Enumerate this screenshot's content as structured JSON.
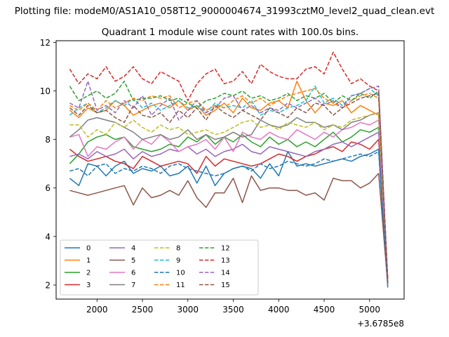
{
  "figure": {
    "suptitle": "Plotting file: modeM0/AS1A10_058T12_9000004674_31993cztM0_level2_quad_clean.evt"
  },
  "chart_data": {
    "type": "line",
    "title": "Quadrant 1 module wise count rates with 100.0s bins.",
    "xlabel": "",
    "ylabel": "",
    "x_offset_label": "+3.6785e8",
    "xlim": [
      1550,
      5380
    ],
    "ylim": [
      1.42,
      12.07
    ],
    "xticks": [
      2000,
      2500,
      3000,
      3500,
      4000,
      4500,
      5000
    ],
    "yticks": [
      2,
      4,
      6,
      8,
      10,
      12
    ],
    "grid": false,
    "legend": {
      "position": "lower-left",
      "ncol": 4
    },
    "x": [
      1700,
      1800,
      1900,
      2000,
      2100,
      2200,
      2300,
      2400,
      2500,
      2600,
      2700,
      2800,
      2900,
      3000,
      3100,
      3200,
      3300,
      3400,
      3500,
      3600,
      3700,
      3800,
      3900,
      4000,
      4100,
      4200,
      4300,
      4400,
      4500,
      4600,
      4700,
      4800,
      4900,
      5000,
      5100,
      5200
    ],
    "series": [
      {
        "name": "0",
        "color": "#1f77b4",
        "dash": "solid",
        "values": [
          6.4,
          6.1,
          7.0,
          6.9,
          6.5,
          6.9,
          7.1,
          6.6,
          6.8,
          6.7,
          6.9,
          6.5,
          6.6,
          6.9,
          6.2,
          6.9,
          6.1,
          6.6,
          6.8,
          6.9,
          6.8,
          6.4,
          7.0,
          6.5,
          7.5,
          6.9,
          7.0,
          6.9,
          7.0,
          7.1,
          7.2,
          7.1,
          7.3,
          7.4,
          7.6,
          1.9
        ]
      },
      {
        "name": "1",
        "color": "#ff7f0e",
        "dash": "solid",
        "values": [
          9.2,
          8.9,
          9.3,
          9.1,
          9.2,
          9.6,
          9.4,
          9.0,
          9.2,
          9.4,
          9.5,
          9.3,
          9.6,
          9.2,
          9.4,
          9.0,
          9.2,
          9.5,
          9.1,
          9.7,
          9.3,
          9.2,
          9.5,
          9.6,
          9.3,
          10.4,
          9.6,
          9.1,
          9.5,
          9.4,
          9.6,
          9.1,
          9.4,
          9.2,
          9.0,
          2.2
        ]
      },
      {
        "name": "2",
        "color": "#2ca02c",
        "dash": "solid",
        "values": [
          7.0,
          7.4,
          7.9,
          8.1,
          8.2,
          8.0,
          8.1,
          7.7,
          7.6,
          7.5,
          7.6,
          7.8,
          7.7,
          8.1,
          7.9,
          8.2,
          7.8,
          8.1,
          7.9,
          8.2,
          7.9,
          7.7,
          8.1,
          7.8,
          8.0,
          7.7,
          7.9,
          7.7,
          8.0,
          8.3,
          7.9,
          8.1,
          8.4,
          8.3,
          8.5,
          2.0
        ]
      },
      {
        "name": "3",
        "color": "#d62728",
        "dash": "solid",
        "values": [
          7.6,
          7.3,
          7.1,
          7.2,
          7.3,
          7.1,
          7.0,
          6.8,
          7.3,
          7.1,
          6.9,
          7.0,
          7.1,
          7.0,
          6.6,
          7.3,
          6.9,
          7.2,
          7.1,
          7.0,
          6.9,
          7.0,
          7.2,
          7.4,
          7.3,
          7.1,
          7.3,
          7.4,
          7.6,
          7.7,
          7.5,
          7.9,
          7.8,
          7.6,
          8.0,
          2.1
        ]
      },
      {
        "name": "4",
        "color": "#9467bd",
        "dash": "solid",
        "values": [
          7.3,
          7.4,
          7.2,
          7.5,
          7.3,
          7.4,
          7.6,
          7.2,
          7.5,
          7.3,
          7.4,
          7.6,
          7.5,
          7.7,
          7.4,
          7.6,
          7.3,
          7.5,
          7.6,
          7.8,
          7.5,
          7.4,
          7.7,
          7.6,
          7.5,
          7.4,
          7.3,
          7.5,
          7.6,
          7.8,
          7.9,
          7.7,
          7.9,
          8.1,
          8.3,
          2.0
        ]
      },
      {
        "name": "5",
        "color": "#8c564b",
        "dash": "solid",
        "values": [
          5.9,
          5.8,
          5.7,
          5.8,
          5.9,
          6.0,
          6.1,
          5.3,
          6.0,
          5.6,
          5.7,
          5.9,
          5.7,
          6.3,
          5.6,
          5.2,
          5.8,
          5.8,
          6.4,
          5.4,
          6.5,
          5.9,
          6.0,
          6.0,
          5.9,
          5.9,
          5.7,
          5.8,
          5.5,
          6.4,
          6.3,
          6.3,
          6.0,
          6.2,
          6.6,
          2.0
        ]
      },
      {
        "name": "6",
        "color": "#e377c2",
        "dash": "solid",
        "values": [
          8.1,
          8.2,
          7.3,
          7.7,
          7.6,
          7.9,
          8.1,
          7.6,
          8.0,
          7.8,
          8.2,
          7.9,
          7.5,
          7.7,
          7.8,
          8.0,
          7.6,
          8.1,
          7.5,
          8.3,
          8.1,
          8.0,
          8.3,
          8.1,
          8.0,
          8.4,
          8.2,
          8.0,
          8.3,
          8.1,
          8.4,
          8.5,
          8.7,
          8.6,
          8.8,
          2.1
        ]
      },
      {
        "name": "7",
        "color": "#7f7f7f",
        "dash": "solid",
        "values": [
          8.1,
          8.4,
          8.8,
          8.9,
          8.8,
          8.7,
          8.5,
          8.3,
          8.0,
          8.1,
          8.2,
          8.0,
          8.1,
          8.4,
          8.0,
          8.2,
          8.0,
          8.1,
          8.3,
          8.1,
          8.2,
          8.8,
          8.6,
          8.5,
          8.6,
          8.9,
          8.7,
          8.7,
          8.5,
          8.6,
          8.4,
          8.7,
          8.8,
          9.0,
          9.1,
          2.0
        ]
      },
      {
        "name": "8",
        "color": "#bcbd22",
        "dash": "dashed",
        "values": [
          8.6,
          8.6,
          8.1,
          8.4,
          8.2,
          8.7,
          8.5,
          8.8,
          8.5,
          8.3,
          8.6,
          8.4,
          8.5,
          8.2,
          8.3,
          8.4,
          8.2,
          8.3,
          8.5,
          8.7,
          8.8,
          8.5,
          8.6,
          8.4,
          8.7,
          8.6,
          8.5,
          8.7,
          8.4,
          8.6,
          8.5,
          8.8,
          8.9,
          9.0,
          9.1,
          2.1
        ]
      },
      {
        "name": "9",
        "color": "#17becf",
        "dash": "dashed",
        "values": [
          9.0,
          9.3,
          9.5,
          9.1,
          9.3,
          9.6,
          9.4,
          9.7,
          9.3,
          9.5,
          9.2,
          9.4,
          9.6,
          9.3,
          9.4,
          9.1,
          9.5,
          9.3,
          9.4,
          9.3,
          9.6,
          9.0,
          9.2,
          9.1,
          9.3,
          9.4,
          9.6,
          10.2,
          9.5,
          9.7,
          9.4,
          9.8,
          9.9,
          10.1,
          9.8,
          2.2
        ]
      },
      {
        "name": "10",
        "color": "#1f77b4",
        "dash": "dashed",
        "values": [
          6.7,
          6.8,
          6.5,
          6.9,
          7.0,
          6.6,
          6.8,
          6.7,
          6.9,
          6.8,
          6.6,
          6.9,
          7.0,
          6.8,
          6.7,
          6.6,
          6.5,
          6.6,
          6.8,
          6.9,
          6.7,
          7.0,
          6.8,
          6.9,
          7.1,
          7.0,
          6.9,
          7.0,
          7.2,
          7.1,
          7.2,
          7.3,
          7.4,
          7.3,
          7.5,
          2.0
        ]
      },
      {
        "name": "11",
        "color": "#ff7f0e",
        "dash": "dashed",
        "values": [
          9.4,
          9.2,
          9.5,
          9.2,
          9.6,
          9.3,
          9.5,
          9.7,
          9.6,
          9.8,
          9.7,
          9.8,
          9.3,
          9.5,
          9.6,
          9.2,
          9.4,
          9.3,
          9.6,
          9.8,
          9.5,
          9.7,
          9.4,
          9.6,
          9.8,
          9.9,
          10.0,
          10.1,
          9.7,
          9.5,
          9.3,
          9.6,
          9.8,
          9.9,
          9.7,
          2.1
        ]
      },
      {
        "name": "12",
        "color": "#2ca02c",
        "dash": "dashed",
        "values": [
          10.2,
          9.6,
          9.8,
          10.0,
          9.7,
          9.9,
          10.4,
          9.6,
          9.7,
          9.7,
          9.8,
          9.6,
          9.7,
          9.5,
          9.3,
          9.6,
          9.7,
          9.9,
          9.8,
          10.0,
          9.7,
          9.8,
          9.6,
          9.7,
          9.9,
          9.6,
          9.8,
          9.7,
          9.9,
          9.5,
          9.8,
          9.6,
          9.9,
          9.7,
          10.0,
          2.1
        ]
      },
      {
        "name": "13",
        "color": "#d62728",
        "dash": "dashed",
        "values": [
          10.9,
          10.3,
          10.7,
          10.5,
          11.0,
          10.4,
          10.6,
          11.0,
          10.5,
          10.3,
          10.8,
          10.6,
          10.4,
          9.6,
          10.3,
          10.7,
          10.9,
          10.3,
          10.4,
          10.8,
          10.3,
          11.1,
          10.8,
          10.6,
          10.5,
          10.5,
          10.9,
          11.0,
          10.7,
          11.6,
          10.9,
          10.3,
          10.5,
          10.2,
          10.0,
          2.3
        ]
      },
      {
        "name": "14",
        "color": "#9467bd",
        "dash": "dashed",
        "values": [
          9.5,
          9.3,
          10.4,
          9.2,
          9.4,
          9.1,
          9.6,
          9.3,
          9.8,
          9.0,
          9.4,
          9.7,
          8.8,
          9.2,
          9.6,
          9.1,
          9.3,
          9.7,
          9.8,
          9.2,
          9.4,
          9.1,
          9.3,
          9.2,
          9.5,
          9.3,
          9.5,
          9.7,
          9.4,
          9.6,
          9.3,
          9.8,
          9.9,
          10.1,
          10.2,
          2.0
        ]
      },
      {
        "name": "15",
        "color": "#8c564b",
        "dash": "dashed",
        "values": [
          9.3,
          9.0,
          9.4,
          9.1,
          9.2,
          8.9,
          8.7,
          9.4,
          9.0,
          8.9,
          9.1,
          8.7,
          9.2,
          8.9,
          9.3,
          8.8,
          9.4,
          9.1,
          8.9,
          9.2,
          9.0,
          8.8,
          9.3,
          9.1,
          8.9,
          9.3,
          9.1,
          9.5,
          9.4,
          9.0,
          9.3,
          9.5,
          9.7,
          9.8,
          9.9,
          2.1
        ]
      }
    ]
  }
}
